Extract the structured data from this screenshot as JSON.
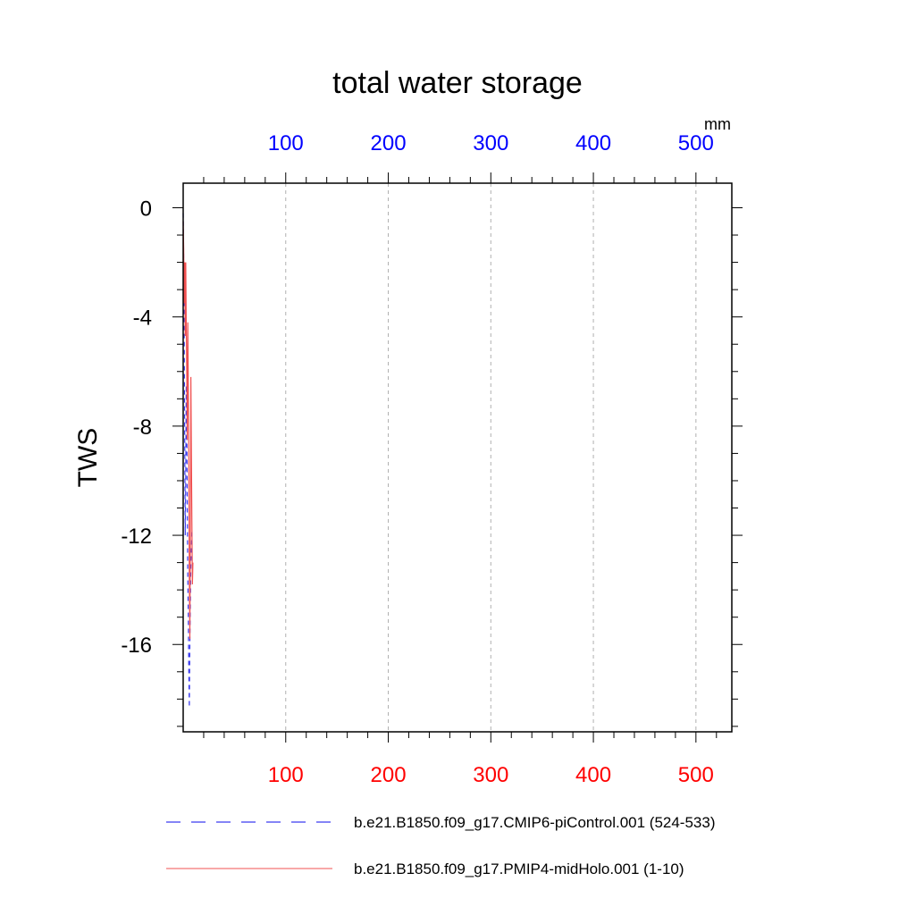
{
  "chart_data": {
    "type": "line",
    "title": "total water storage",
    "xlabel": "",
    "ylabel": "TWS",
    "units_label": "mm",
    "xlim": [
      0,
      535
    ],
    "ylim": [
      -19.2,
      0.9
    ],
    "x_ticks": [
      100,
      200,
      300,
      400,
      500
    ],
    "x_tick_labels": [
      "100",
      "200",
      "300",
      "400",
      "500"
    ],
    "y_ticks": [
      0,
      -4,
      -8,
      -12,
      -16
    ],
    "y_tick_labels": [
      "0",
      "-4",
      "-8",
      "-12",
      "-16"
    ],
    "grid": "vertical dashed",
    "colors": {
      "top_axis": "#0000ff",
      "bottom_axis": "#ff0000",
      "series1": "#3b3bf0",
      "series2": "#f05050"
    },
    "series": [
      {
        "name": "b.e21.B1850.f09_g17.CMIP6-piControl.001 (524-533)",
        "style": "dashed",
        "color": "#3b3bf0",
        "x": [
          0,
          0.5,
          1,
          1.5,
          2,
          2.5,
          3,
          3.5,
          4,
          4.5,
          5,
          5.5,
          6,
          6.5,
          7,
          7.5,
          8,
          8.5
        ],
        "y": [
          -0.2,
          -2,
          -4.6,
          -8.5,
          -12,
          -10,
          -6.5,
          -7.5,
          -11,
          -13.5,
          -15,
          -17,
          -18.3,
          -16,
          -14.5,
          -13,
          -12.5,
          -11.8
        ]
      },
      {
        "name": "b.e21.B1850.f09_g17.PMIP4-midHolo.001 (1-10)",
        "style": "solid",
        "color": "#f05050",
        "x": [
          0,
          0.5,
          1,
          1.5,
          2,
          2.5,
          3,
          3.5,
          4,
          4.5,
          5,
          5.5,
          6,
          6.5,
          7,
          7.5,
          8,
          8.5,
          9,
          9.5
        ],
        "y": [
          -0.5,
          -1.5,
          -3.5,
          -2.0,
          -4.7,
          -2.0,
          -4.3,
          -6.0,
          -8.5,
          -4.2,
          -6.5,
          -9.0,
          -13.5,
          -15.8,
          -12.0,
          -6.2,
          -9.0,
          -11.5,
          -13.8,
          -13.0
        ]
      }
    ],
    "legend": {
      "placement": "bottom"
    }
  }
}
